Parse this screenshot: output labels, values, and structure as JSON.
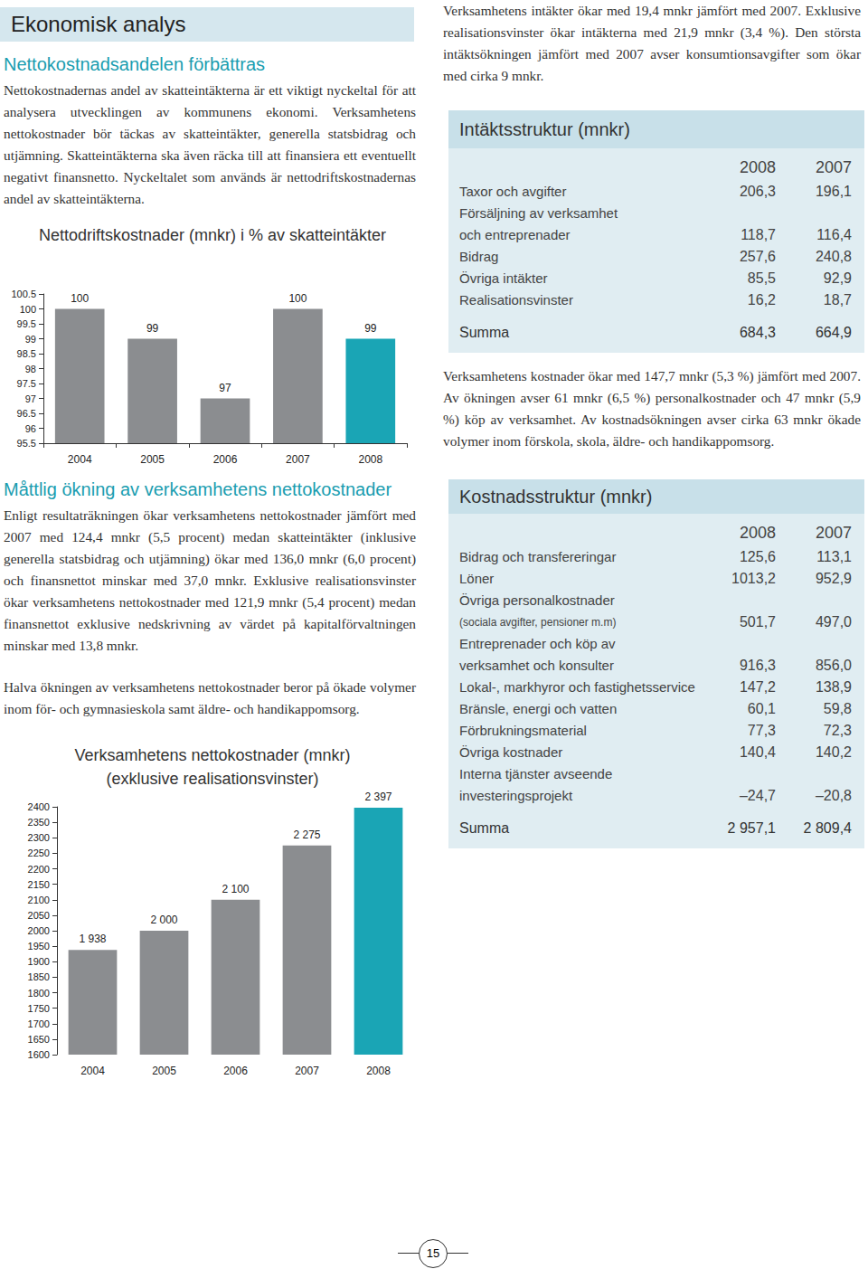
{
  "header": {
    "title": "Ekonomisk analys"
  },
  "sections": [
    {
      "heading": "Nettokostnadsandelen förbättras",
      "paragraphs": [
        "Nettokostnadernas andel av skatteintäkterna är ett viktigt nyckeltal för att analysera utvecklingen av kommunens ekonomi. Verksamhetens nettokostnader bör täckas av skatteintäkter, generella statsbidrag och utjämning. Skatteintäkterna ska även räcka till att finansiera ett eventuellt negativt finansnetto. Nyckeltalet som används är nettodriftskostnadernas andel av skatteintäkterna."
      ]
    },
    {
      "heading": "Måttlig ökning av verksamhetens nettokostnader",
      "paragraphs": [
        "Enligt resultaträkningen ökar verksamhetens nettokostnader jämfört med 2007 med 124,4 mnkr (5,5 procent) medan skatteintäkter (inklusive generella statsbidrag och utjämning) ökar med 136,0 mnkr (6,0 procent) och finansnettot minskar med 37,0 mnkr. Exklusive realisationsvinster ökar verksamhetens nettokostnader med 121,9 mnkr (5,4 procent) medan finansnettot exklusive nedskrivning av värdet på kapitalförvaltningen minskar med 13,8 mnkr.",
        "Halva ökningen av verksamhetens nettokostnader beror på ökade volymer inom för- och gymnasieskola samt äldre- och handikappomsorg."
      ]
    }
  ],
  "right_text": [
    "Verksamhetens intäkter ökar med 19,4 mnkr jämfört med 2007. Exklusive realisationsvinster ökar intäkterna med 21,9 mnkr (3,4 %). Den största intäktsökningen jämfört med 2007 avser konsumtionsavgifter som ökar med cirka 9 mnkr.",
    "Verksamhetens kostnader ökar med 147,7 mnkr (5,3 %) jämfört med 2007. Av ökningen avser 61 mnkr (6,5 %) personalkostnader och 47 mnkr (5,9 %) köp av verksamhet. Av kostnadsökningen avser cirka 63 mnkr ökade volymer inom förskola, skola, äldre- och handikappomsorg."
  ],
  "tables": [
    {
      "title": "Intäktsstruktur (mnkr)",
      "columns": [
        "2008",
        "2007"
      ],
      "rows": [
        {
          "label": [
            "Taxor och avgifter"
          ],
          "values": [
            "206,3",
            "196,1"
          ]
        },
        {
          "label": [
            "Försäljning av verksamhet",
            "och entreprenader"
          ],
          "values": [
            "118,7",
            "116,4"
          ]
        },
        {
          "label": [
            "Bidrag"
          ],
          "values": [
            "257,6",
            "240,8"
          ]
        },
        {
          "label": [
            "Övriga intäkter"
          ],
          "values": [
            "85,5",
            "92,9"
          ]
        },
        {
          "label": [
            "Realisationsvinster"
          ],
          "values": [
            "16,2",
            "18,7"
          ]
        }
      ],
      "total": {
        "label": [
          "Summa"
        ],
        "values": [
          "684,3",
          "664,9"
        ]
      }
    },
    {
      "title": "Kostnadsstruktur (mnkr)",
      "columns": [
        "2008",
        "2007"
      ],
      "rows": [
        {
          "label": [
            "Bidrag och transfereringar"
          ],
          "values": [
            "125,6",
            "113,1"
          ]
        },
        {
          "label": [
            "Löner"
          ],
          "values": [
            "1013,2",
            "952,9"
          ]
        },
        {
          "label": [
            "Övriga personalkostnader"
          ],
          "note": "(sociala avgifter, pensioner m.m)",
          "values": [
            "501,7",
            "497,0"
          ]
        },
        {
          "label": [
            "Entreprenader och köp av",
            "verksamhet och konsulter"
          ],
          "values": [
            "916,3",
            "856,0"
          ]
        },
        {
          "label": [
            "Lokal-, markhyror och fastighetsservice"
          ],
          "values": [
            "147,2",
            "138,9"
          ]
        },
        {
          "label": [
            "Bränsle, energi och vatten"
          ],
          "values": [
            "60,1",
            "59,8"
          ]
        },
        {
          "label": [
            "Förbrukningsmaterial"
          ],
          "values": [
            "77,3",
            "72,3"
          ]
        },
        {
          "label": [
            "Övriga kostnader"
          ],
          "values": [
            "140,4",
            "140,2"
          ]
        },
        {
          "label": [
            "Interna tjänster avseende",
            "investeringsprojekt"
          ],
          "values": [
            "–24,7",
            "–20,8"
          ]
        }
      ],
      "total": {
        "label": [
          "Summa"
        ],
        "values": [
          "2 957,1",
          "2 809,4"
        ]
      }
    }
  ],
  "chart_data": [
    {
      "type": "bar",
      "title": "Nettodriftskostnader (mnkr) i % av skatteintäkter",
      "categories": [
        "2004",
        "2005",
        "2006",
        "2007",
        "2008"
      ],
      "values": [
        100,
        99,
        97,
        100,
        99
      ],
      "colors": [
        "#8b8d90",
        "#8b8d90",
        "#8b8d90",
        "#8b8d90",
        "#1aa5b5"
      ],
      "ylim": [
        95.5,
        100.5
      ],
      "yticks": [
        95.5,
        96,
        96.5,
        97,
        97.5,
        98,
        98.5,
        99,
        99.5,
        100,
        100.5
      ],
      "grid": false,
      "data_labels": true
    },
    {
      "type": "bar",
      "title": "Verksamhetens nettokostnader (mnkr)",
      "subtitle": "(exklusive realisationsvinster)",
      "categories": [
        "2004",
        "2005",
        "2006",
        "2007",
        "2008"
      ],
      "values": [
        1938,
        2000,
        2100,
        2275,
        2397
      ],
      "value_labels": [
        "1 938",
        "2 000",
        "2 100",
        "2 275",
        "2 397"
      ],
      "colors": [
        "#8b8d90",
        "#8b8d90",
        "#8b8d90",
        "#8b8d90",
        "#1aa5b5"
      ],
      "ylim": [
        1600,
        2400
      ],
      "yticks": [
        1600,
        1650,
        1700,
        1750,
        1800,
        1850,
        1900,
        1950,
        2000,
        2050,
        2100,
        2150,
        2200,
        2250,
        2300,
        2350,
        2400
      ],
      "grid": false,
      "data_labels": true
    }
  ],
  "page_number": "15"
}
